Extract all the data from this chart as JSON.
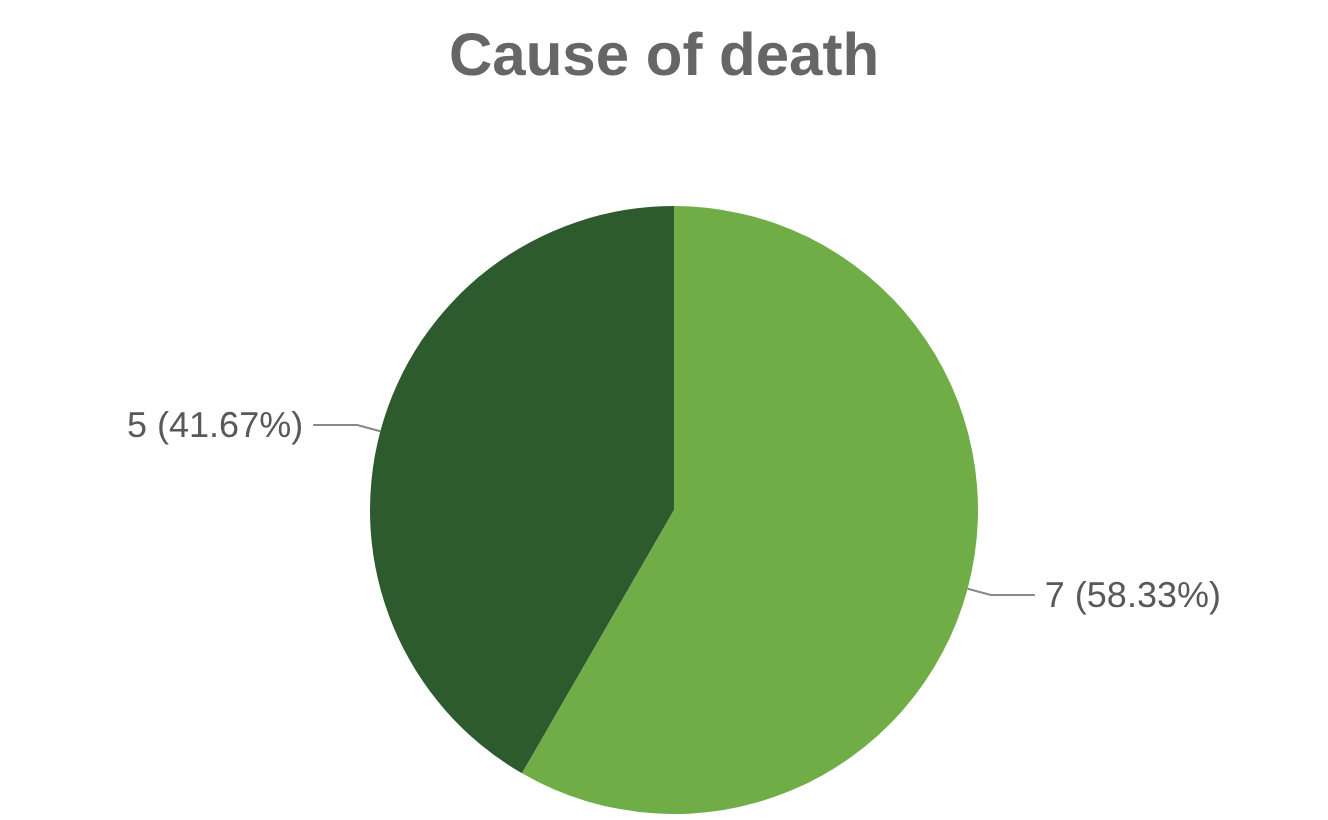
{
  "chart_data": {
    "type": "pie",
    "title": "Cause of death",
    "categories": [
      null,
      null
    ],
    "values": [
      7,
      5
    ],
    "colors": [
      "#70ad47",
      "#2d5b2d"
    ],
    "value_labels": [
      "7 (58.33%)",
      "5 (41.67%)"
    ]
  }
}
